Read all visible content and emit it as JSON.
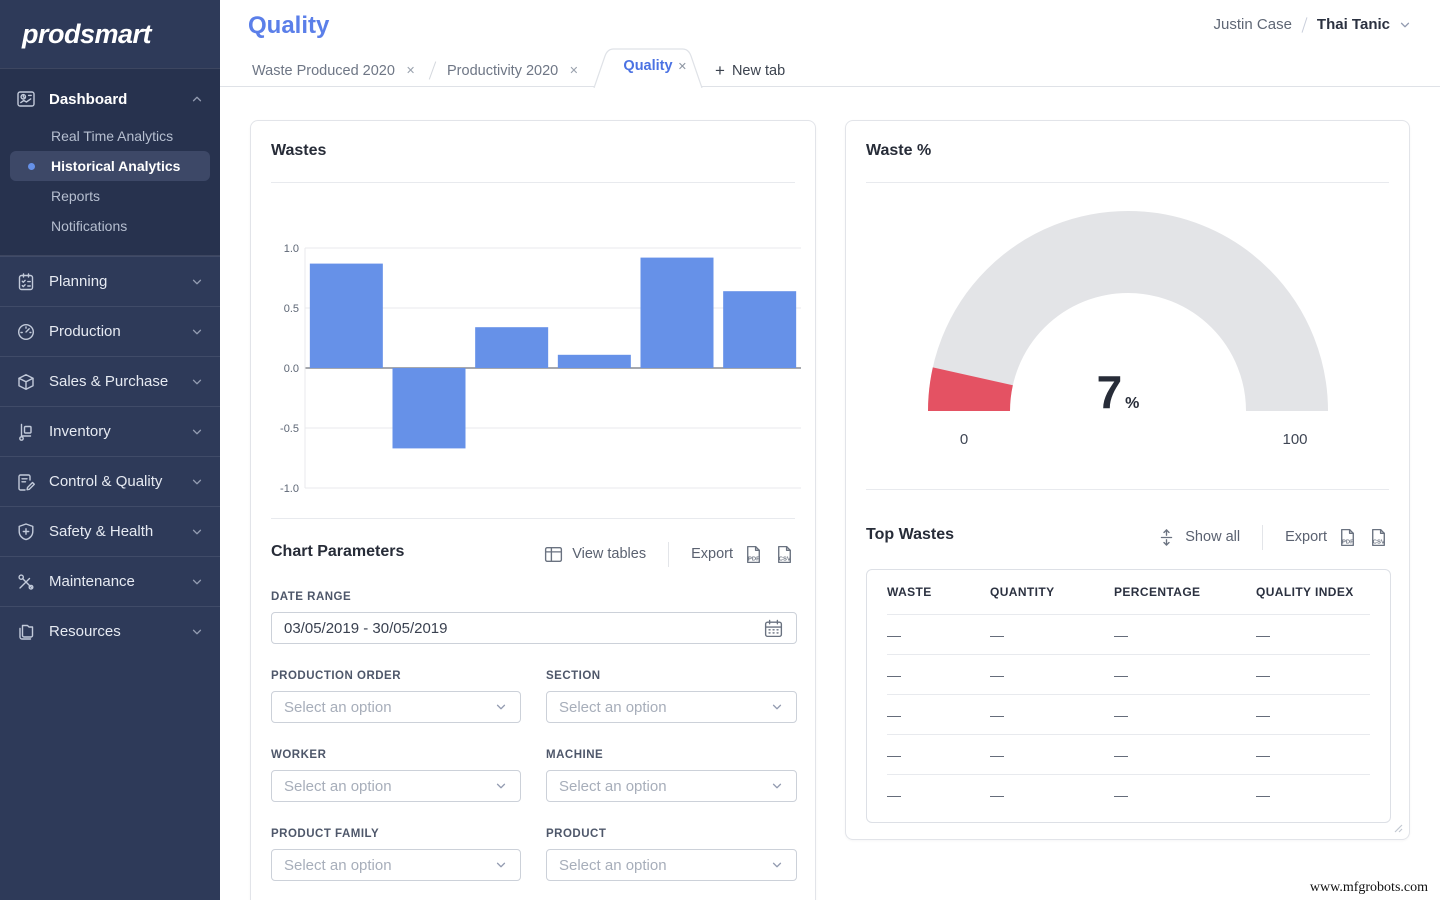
{
  "colors": {
    "sidebar_bg": "#2e3a59",
    "sidebar_group_bg": "#27324e",
    "sidebar_active_bg": "#3d4867",
    "accent_blue": "#6691e8",
    "title_blue": "#5b7fe9",
    "tab_active_blue": "#4b72e3",
    "gauge_red": "#e45263",
    "gauge_track": "#e3e4e7"
  },
  "sidebar": {
    "logo": "prodsmart",
    "dashboard": {
      "label": "Dashboard",
      "children": [
        {
          "label": "Real Time Analytics",
          "active": false
        },
        {
          "label": "Historical Analytics",
          "active": true
        },
        {
          "label": "Reports",
          "active": false
        },
        {
          "label": "Notifications",
          "active": false
        }
      ]
    },
    "sections": [
      {
        "label": "Planning"
      },
      {
        "label": "Production"
      },
      {
        "label": "Sales & Purchase"
      },
      {
        "label": "Inventory"
      },
      {
        "label": "Control & Quality"
      },
      {
        "label": "Safety & Health"
      },
      {
        "label": "Maintenance"
      },
      {
        "label": "Resources"
      }
    ]
  },
  "header": {
    "title": "Quality",
    "user_company": "Justin Case",
    "user_name": "Thai Tanic"
  },
  "tabs": [
    {
      "label": "Waste Produced 2020",
      "active": false
    },
    {
      "label": "Productivity 2020",
      "active": false
    },
    {
      "label": "Quality",
      "active": true
    }
  ],
  "new_tab_label": "New tab",
  "chart_data": [
    {
      "type": "bar",
      "title": "Wastes",
      "categories": [
        "",
        "",
        "",
        "",
        "",
        ""
      ],
      "values": [
        0.87,
        -0.67,
        0.34,
        0.11,
        0.92,
        0.64
      ],
      "ylim": [
        -1.0,
        1.0
      ],
      "yticks": [
        1.0,
        0.5,
        0.0,
        -0.5,
        -1.0
      ],
      "ytick_labels": [
        "1.0",
        "0.5",
        "0.0",
        "-0.5",
        "-1.0"
      ],
      "bar_color": "#6691e8",
      "grid": true,
      "legend": "none"
    },
    {
      "type": "gauge",
      "title": "Waste %",
      "value": 7,
      "unit": "%",
      "min": 0,
      "max": 100,
      "min_label": "0",
      "max_label": "100",
      "color": "#e45263",
      "track_color": "#e3e4e7"
    }
  ],
  "wastes_card": {
    "title": "Wastes",
    "parameters": {
      "title": "Chart Parameters",
      "view_tables_label": "View tables",
      "export_label": "Export",
      "pdf_label": "PDF",
      "csv_label": "CSV",
      "date_range": {
        "label": "DATE RANGE",
        "value": "03/05/2019 - 30/05/2019"
      },
      "fields": [
        {
          "label": "PRODUCTION ORDER",
          "placeholder": "Select an option"
        },
        {
          "label": "SECTION",
          "placeholder": "Select an option"
        },
        {
          "label": "WORKER",
          "placeholder": "Select an option"
        },
        {
          "label": "MACHINE",
          "placeholder": "Select an option"
        },
        {
          "label": "PRODUCT FAMILY",
          "placeholder": "Select an option"
        },
        {
          "label": "PRODUCT",
          "placeholder": "Select an option"
        }
      ]
    }
  },
  "waste_pct_card": {
    "title": "Waste %"
  },
  "top_wastes": {
    "title": "Top Wastes",
    "show_all_label": "Show all",
    "export_label": "Export",
    "pdf_label": "PDF",
    "csv_label": "CSV",
    "columns": [
      "WASTE",
      "QUANTITY",
      "PERCENTAGE",
      "QUALITY INDEX"
    ],
    "rows": [
      [
        "—",
        "—",
        "—",
        "—"
      ],
      [
        "—",
        "—",
        "—",
        "—"
      ],
      [
        "—",
        "—",
        "—",
        "—"
      ],
      [
        "—",
        "—",
        "—",
        "—"
      ],
      [
        "—",
        "—",
        "—",
        "—"
      ]
    ]
  },
  "watermark": "www.mfgrobots.com"
}
